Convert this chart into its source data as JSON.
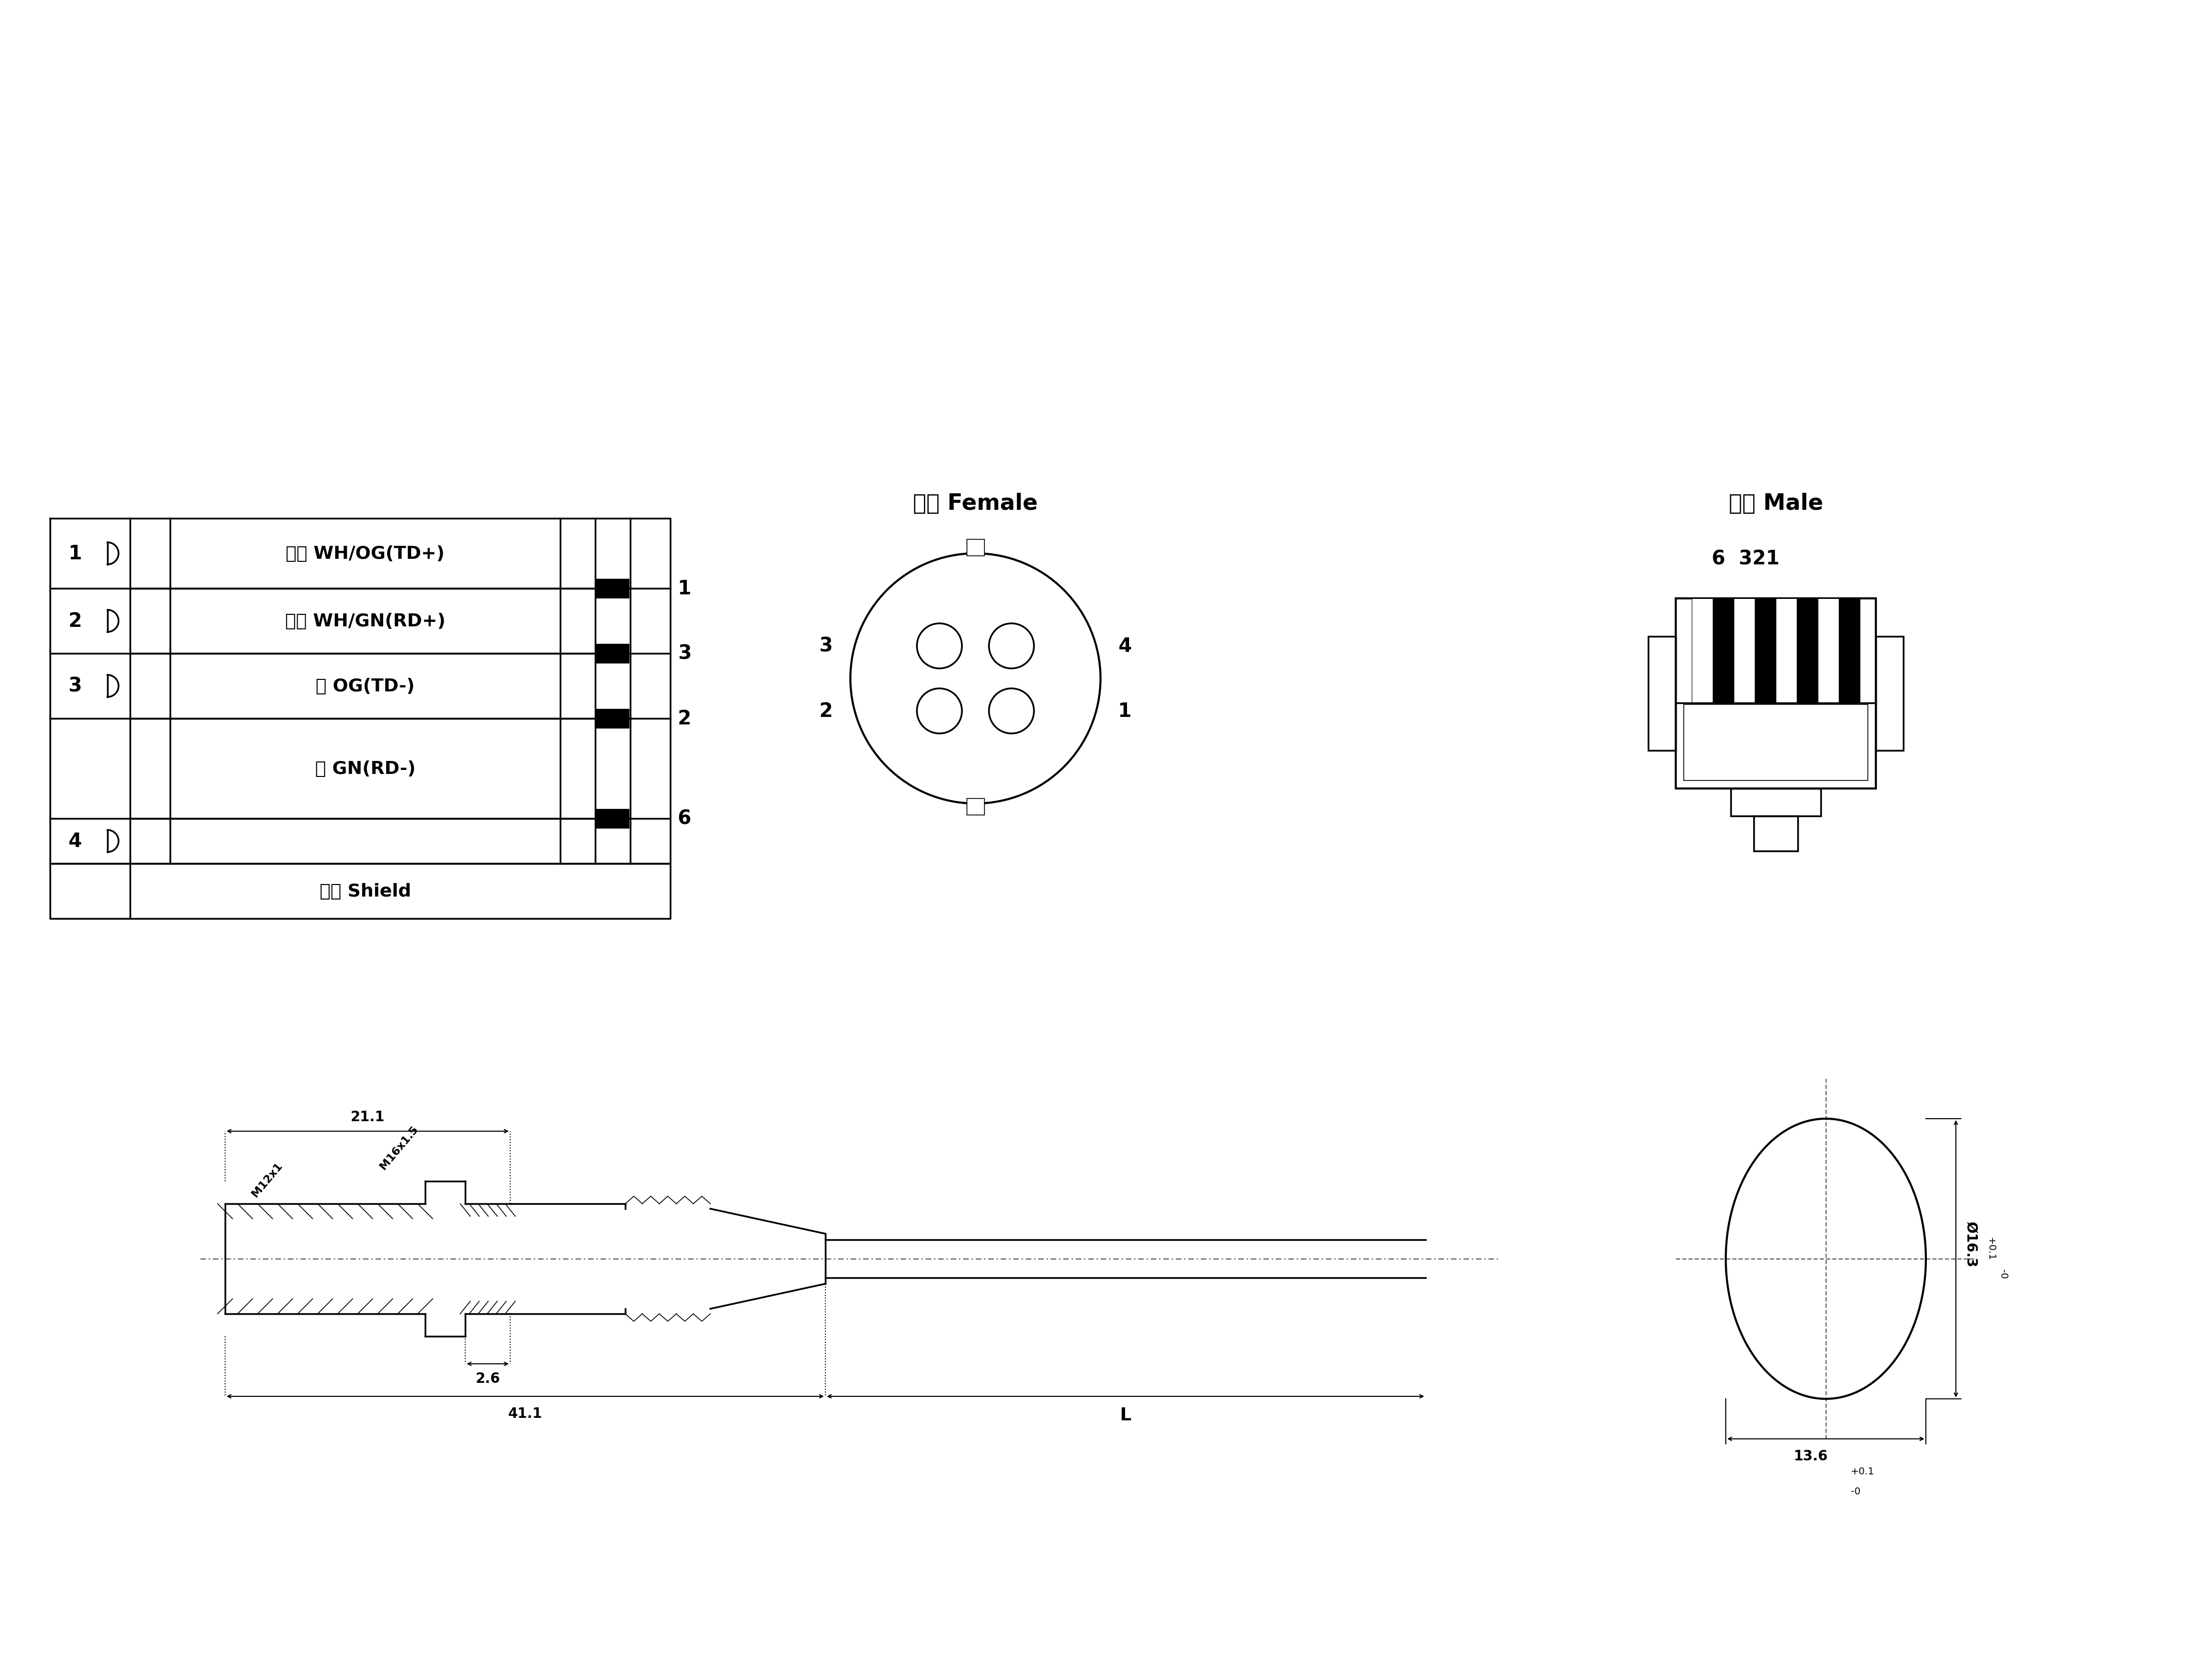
{
  "bg_color": "#ffffff",
  "line_color": "#000000",
  "label_bai_cheng": "白橙 WH/OG(TD+)",
  "label_bai_lv": "白绻 WH/GN(RD+)",
  "label_cheng": "橙 OG(TD-)",
  "label_lv": "绻 GN(RD-)",
  "label_shield": "屏蔽 Shield",
  "female_label": "插孔 Female",
  "male_label": "插针 Male",
  "m12_pins_right": [
    "1",
    "3",
    "2",
    "6"
  ],
  "rj45_pins": [
    "1",
    "2",
    "3",
    "4"
  ],
  "dim_211": "21.1",
  "dim_411": "41.1",
  "dim_26": "2.6",
  "dim_L": "L",
  "dim_M16": "M16x1.5",
  "dim_M12": "M12x1",
  "dim_dia163": "Ø16.3",
  "dim_dia_tol": "+0.1\n-0",
  "dim_136": "13.6",
  "dim_136_tol": "+0.1\n-0",
  "male_pins_label": "6  321"
}
